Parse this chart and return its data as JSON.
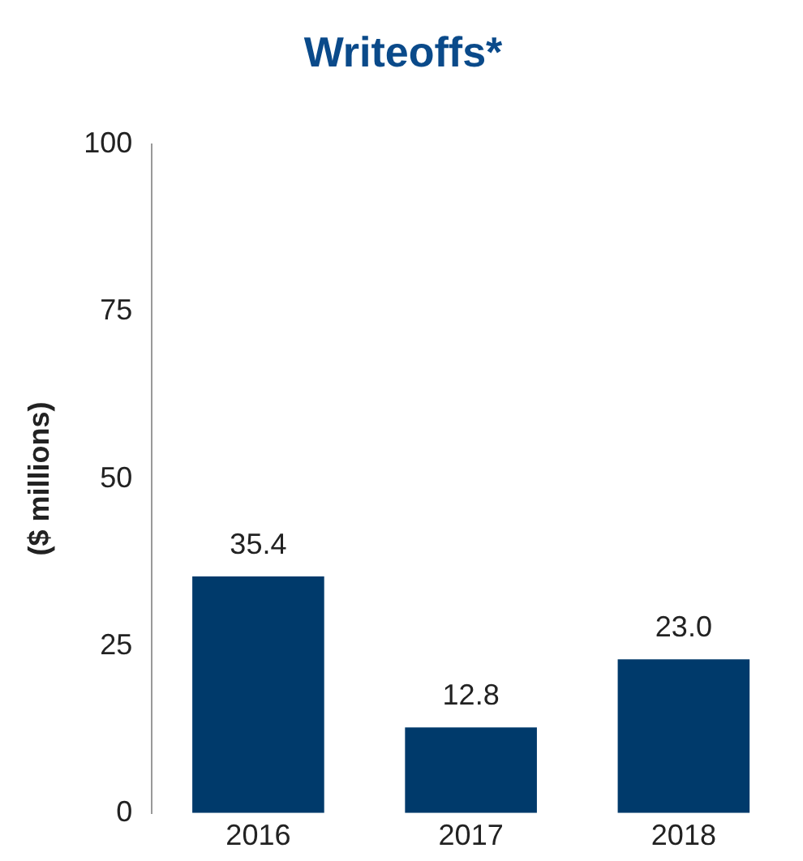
{
  "chart_data": {
    "type": "bar",
    "title": "Writeoffs*",
    "ylabel": "($ millions)",
    "categories": [
      "2016",
      "2017",
      "2018"
    ],
    "values": [
      35.4,
      12.8,
      23.0
    ],
    "value_labels": [
      "35.4",
      "12.8",
      "23.0"
    ],
    "color": "#003a6b",
    "ylim": [
      0,
      100
    ],
    "yticks": [
      0,
      25,
      50,
      75,
      100
    ],
    "grid": false,
    "legend": false
  }
}
